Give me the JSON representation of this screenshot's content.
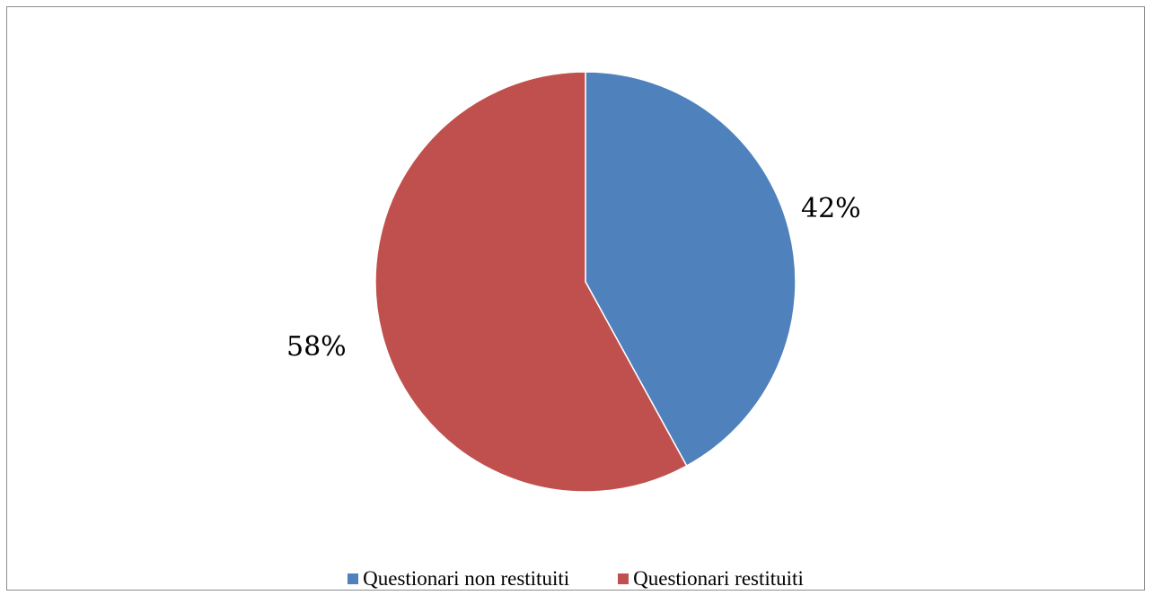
{
  "chart_data": {
    "type": "pie",
    "title": "",
    "categories": [
      "Questionari non restituiti",
      "Questionari restituiti"
    ],
    "values": [
      42,
      58
    ],
    "value_labels": [
      "42%",
      "58%"
    ],
    "colors": [
      "#4f81bd",
      "#c0504d"
    ],
    "legend_position": "bottom",
    "start_angle_deg": 0,
    "direction": "clockwise"
  }
}
